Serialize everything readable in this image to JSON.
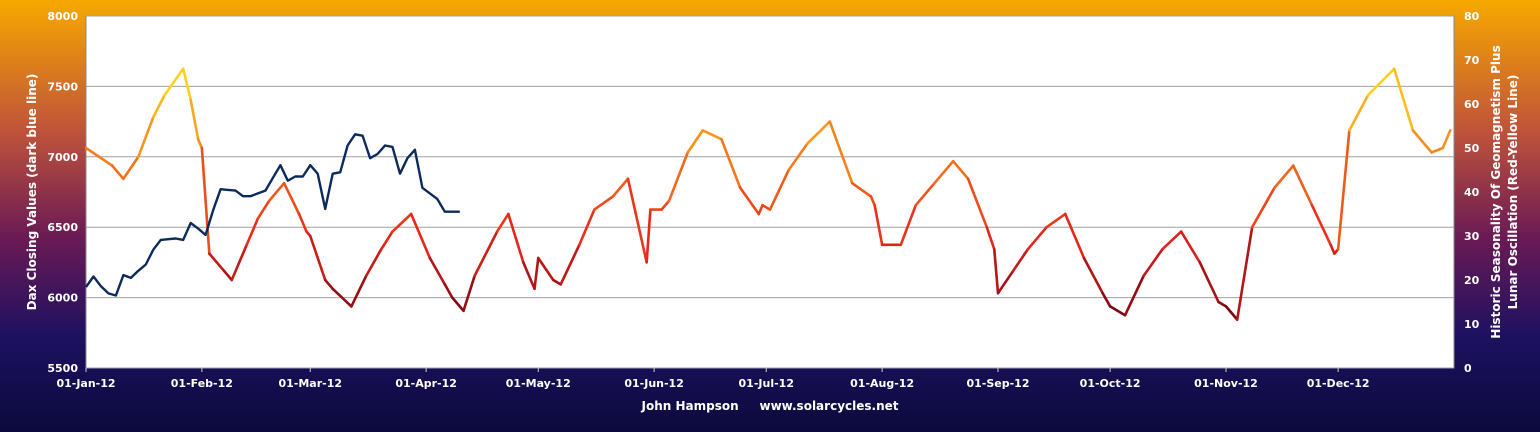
{
  "chart_data": {
    "type": "line",
    "xlabel": "John Hampson     www.solarcycles.net",
    "ylabel_left": "Dax Closing  Values (dark blue line)",
    "ylabel_right": "Historic Seasonality  Of Geomagnetism Plus Lunar Oscillation  (Red-Yellow Line)",
    "ylim_left": [
      5500,
      8000
    ],
    "ylim_right": [
      0,
      80
    ],
    "yticks_left": [
      "8000",
      "7500",
      "7000",
      "6500",
      "6000",
      "5500"
    ],
    "yticks_right": [
      "80",
      "70",
      "60",
      "50",
      "40",
      "30",
      "20",
      "10",
      "0"
    ],
    "x_tick_labels": [
      "01-Jan-12",
      "01-Feb-12",
      "01-Mar-12",
      "01-Apr-12",
      "01-May-12",
      "01-Jun-12",
      "01-Jul-12",
      "01-Aug-12",
      "01-Sep-12",
      "01-Oct-12",
      "01-Nov-12",
      "01-Dec-12"
    ],
    "grid": true,
    "colors": {
      "dax": "#0d2a5c",
      "plot_bg": "#ffffff",
      "grid": "#a0a0a0",
      "season_low": "#6b0010",
      "season_mid": "#e8261a",
      "season_high": "#ffd21e"
    },
    "series": [
      {
        "name": "Dax Closing Values",
        "axis": "left",
        "x": [
          "01-Jan-12",
          "03-Jan-12",
          "05-Jan-12",
          "07-Jan-12",
          "09-Jan-12",
          "11-Jan-12",
          "13-Jan-12",
          "15-Jan-12",
          "17-Jan-12",
          "19-Jan-12",
          "21-Jan-12",
          "23-Jan-12",
          "25-Jan-12",
          "27-Jan-12",
          "29-Jan-12",
          "31-Jan-12",
          "02-Feb-12",
          "04-Feb-12",
          "06-Feb-12",
          "08-Feb-12",
          "10-Feb-12",
          "12-Feb-12",
          "14-Feb-12",
          "16-Feb-12",
          "18-Feb-12",
          "20-Feb-12",
          "22-Feb-12",
          "24-Feb-12",
          "26-Feb-12",
          "28-Feb-12",
          "01-Mar-12",
          "03-Mar-12",
          "05-Mar-12",
          "07-Mar-12",
          "09-Mar-12",
          "11-Mar-12",
          "13-Mar-12",
          "15-Mar-12",
          "17-Mar-12",
          "19-Mar-12",
          "21-Mar-12",
          "23-Mar-12",
          "25-Mar-12",
          "27-Mar-12",
          "29-Mar-12",
          "31-Mar-12",
          "02-Apr-12",
          "04-Apr-12",
          "06-Apr-12",
          "08-Apr-12",
          "10-Apr-12"
        ],
        "y": [
          6075,
          6150,
          6080,
          6030,
          6015,
          6160,
          6140,
          6190,
          6235,
          6340,
          6410,
          6415,
          6420,
          6410,
          6530,
          6490,
          6445,
          6620,
          6770,
          6765,
          6760,
          6720,
          6720,
          6740,
          6760,
          6850,
          6940,
          6830,
          6860,
          6860,
          6940,
          6880,
          6630,
          6880,
          6890,
          7080,
          7160,
          7150,
          6990,
          7020,
          7080,
          7070,
          6880,
          6990,
          7050,
          6780,
          6740,
          6700,
          6610,
          6610,
          6610
        ]
      },
      {
        "name": "Historic Seasonality Of Geomagnetism Plus Lunar Oscillation",
        "axis": "right",
        "x": [
          "01-Jan-12",
          "08-Jan-12",
          "11-Jan-12",
          "15-Jan-12",
          "19-Jan-12",
          "22-Jan-12",
          "27-Jan-12",
          "29-Jan-12",
          "31-Jan-12",
          "01-Feb-12",
          "03-Feb-12",
          "07-Feb-12",
          "09-Feb-12",
          "13-Feb-12",
          "16-Feb-12",
          "19-Feb-12",
          "23-Feb-12",
          "27-Feb-12",
          "29-Feb-12",
          "01-Mar-12",
          "05-Mar-12",
          "07-Mar-12",
          "12-Mar-12",
          "16-Mar-12",
          "20-Mar-12",
          "23-Mar-12",
          "28-Mar-12",
          "02-Apr-12",
          "06-Apr-12",
          "08-Apr-12",
          "11-Apr-12",
          "14-Apr-12",
          "20-Apr-12",
          "23-Apr-12",
          "27-Apr-12",
          "30-Apr-12",
          "01-May-12",
          "05-May-12",
          "07-May-12",
          "12-May-12",
          "16-May-12",
          "21-May-12",
          "25-May-12",
          "30-May-12",
          "31-May-12",
          "03-Jun-12",
          "05-Jun-12",
          "10-Jun-12",
          "14-Jun-12",
          "19-Jun-12",
          "24-Jun-12",
          "29-Jun-12",
          "30-Jun-12",
          "02-Jul-12",
          "07-Jul-12",
          "12-Jul-12",
          "18-Jul-12",
          "24-Jul-12",
          "29-Jul-12",
          "30-Jul-12",
          "01-Aug-12",
          "06-Aug-12",
          "10-Aug-12",
          "15-Aug-12",
          "20-Aug-12",
          "24-Aug-12",
          "29-Aug-12",
          "31-Aug-12",
          "01-Sep-12",
          "05-Sep-12",
          "09-Sep-12",
          "14-Sep-12",
          "19-Sep-12",
          "24-Sep-12",
          "29-Sep-12",
          "01-Oct-12",
          "05-Oct-12",
          "10-Oct-12",
          "15-Oct-12",
          "20-Oct-12",
          "25-Oct-12",
          "30-Oct-12",
          "01-Nov-12",
          "04-Nov-12",
          "08-Nov-12",
          "14-Nov-12",
          "19-Nov-12",
          "24-Nov-12",
          "29-Nov-12",
          "30-Nov-12",
          "01-Dec-12",
          "04-Dec-12",
          "09-Dec-12",
          "16-Dec-12",
          "21-Dec-12",
          "26-Dec-12",
          "29-Dec-12",
          "31-Dec-12"
        ],
        "y": [
          50,
          46,
          43,
          48,
          57,
          62,
          68,
          61,
          52,
          50,
          26,
          22,
          20,
          28,
          34,
          38,
          42,
          35,
          31,
          30,
          20,
          18,
          14,
          21,
          27,
          31,
          35,
          25,
          19,
          16,
          13,
          21,
          31,
          35,
          24,
          18,
          25,
          20,
          19,
          28,
          36,
          39,
          43,
          24,
          36,
          36,
          38,
          49,
          54,
          52,
          41,
          35,
          37,
          36,
          45,
          51,
          56,
          42,
          39,
          37,
          28,
          28,
          37,
          42,
          47,
          43,
          32,
          27,
          17,
          22,
          27,
          32,
          35,
          25,
          17,
          14,
          12,
          21,
          27,
          31,
          24,
          15,
          14,
          11,
          32,
          41,
          46,
          37,
          28,
          26,
          27,
          54,
          62,
          68,
          54,
          49,
          50,
          54
        ]
      }
    ]
  }
}
